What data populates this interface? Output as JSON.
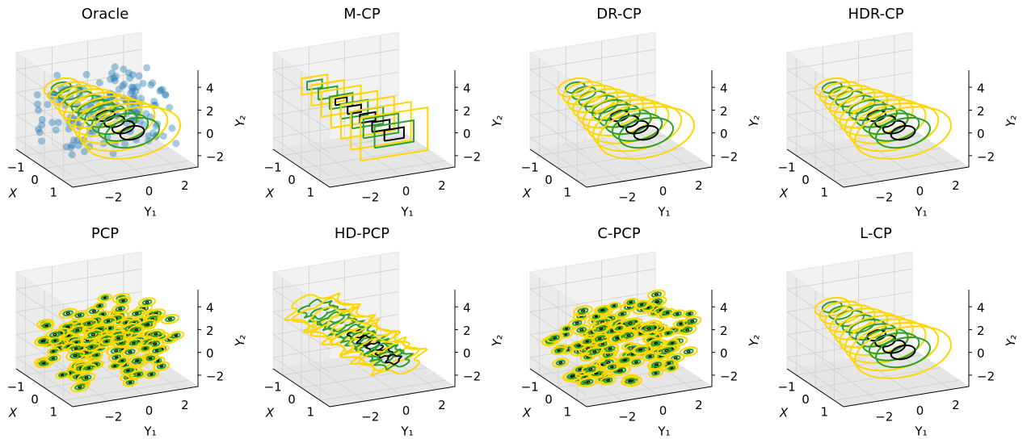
{
  "chart_data": [
    {
      "type": "contour",
      "title": "Oracle",
      "points": true,
      "colors": [
        "#ffd700",
        "#2ca02c",
        "#000000",
        "#1f77b4"
      ],
      "xlabel": "X",
      "ylabel": "Y₁",
      "zlabel": "Y₂",
      "xlim": [
        -1.5,
        1.5
      ],
      "ylim": [
        -4,
        3
      ],
      "zlim": [
        -3,
        5.5
      ],
      "xticks": [
        {
          "value": -1,
          "label": "−1"
        },
        0,
        1
      ],
      "yticks": [
        {
          "value": -2,
          "label": "−2"
        },
        0,
        2
      ],
      "zticks": [
        {
          "value": -2,
          "label": "−2"
        },
        0,
        2,
        4
      ]
    },
    {
      "type": "box",
      "title": "M-CP",
      "colors": [
        "#ffd700",
        "#2ca02c",
        "#000000"
      ],
      "xlabel": "X",
      "ylabel": "Y₁",
      "zlabel": "Y₂",
      "xlim": [
        -1.5,
        1.5
      ],
      "ylim": [
        -4,
        3
      ],
      "zlim": [
        -3,
        5.5
      ],
      "xticks": [
        {
          "value": -1,
          "label": "−1"
        },
        0,
        1
      ],
      "yticks": [
        {
          "value": -2,
          "label": "−2"
        },
        0,
        2
      ],
      "zticks": [
        {
          "value": -2,
          "label": "−2"
        },
        0,
        2,
        4
      ]
    },
    {
      "type": "contour",
      "title": "DR-CP",
      "colors": [
        "#ffd700",
        "#2ca02c",
        "#000000"
      ],
      "xlabel": "X",
      "ylabel": "Y₁",
      "zlabel": "Y₂",
      "xlim": [
        -1.5,
        1.5
      ],
      "ylim": [
        -4,
        3
      ],
      "zlim": [
        -3,
        5.5
      ],
      "xticks": [
        {
          "value": -1,
          "label": "−1"
        },
        0,
        1
      ],
      "yticks": [
        {
          "value": -2,
          "label": "−2"
        },
        0,
        2
      ],
      "zticks": [
        {
          "value": -2,
          "label": "−2"
        },
        0,
        2,
        4
      ]
    },
    {
      "type": "contour",
      "title": "HDR-CP",
      "colors": [
        "#ffd700",
        "#2ca02c",
        "#000000"
      ],
      "xlabel": "X",
      "ylabel": "Y₁",
      "zlabel": "Y₂",
      "xlim": [
        -1.5,
        1.5
      ],
      "ylim": [
        -4,
        3
      ],
      "zlim": [
        -3,
        5.5
      ],
      "xticks": [
        {
          "value": -1,
          "label": "−1"
        },
        0,
        1
      ],
      "yticks": [
        {
          "value": -2,
          "label": "−2"
        },
        0,
        2
      ],
      "zticks": [
        {
          "value": -2,
          "label": "−2"
        },
        0,
        2,
        4
      ]
    },
    {
      "type": "blob",
      "title": "PCP",
      "colors": [
        "#ffd700",
        "#2ca02c",
        "#000000"
      ],
      "xlabel": "X",
      "ylabel": "Y₁",
      "zlabel": "Y₂",
      "xlim": [
        -1.5,
        1.5
      ],
      "ylim": [
        -4,
        3
      ],
      "zlim": [
        -3,
        5.5
      ],
      "xticks": [
        {
          "value": -1,
          "label": "−1"
        },
        0,
        1
      ],
      "yticks": [
        {
          "value": -2,
          "label": "−2"
        },
        0,
        2
      ],
      "zticks": [
        {
          "value": -2,
          "label": "−2"
        },
        0,
        2,
        4
      ]
    },
    {
      "type": "wiggle",
      "title": "HD-PCP",
      "colors": [
        "#ffd700",
        "#2ca02c",
        "#000000"
      ],
      "xlabel": "X",
      "ylabel": "Y₁",
      "zlabel": "Y₂",
      "xlim": [
        -1.5,
        1.5
      ],
      "ylim": [
        -4,
        3
      ],
      "zlim": [
        -3,
        5.5
      ],
      "xticks": [
        {
          "value": -1,
          "label": "−1"
        },
        0,
        1
      ],
      "yticks": [
        {
          "value": -2,
          "label": "−2"
        },
        0,
        2
      ],
      "zticks": [
        {
          "value": -2,
          "label": "−2"
        },
        0,
        2,
        4
      ]
    },
    {
      "type": "blob",
      "title": "C-PCP",
      "colors": [
        "#ffd700",
        "#2ca02c",
        "#000000"
      ],
      "xlabel": "X",
      "ylabel": "Y₁",
      "zlabel": "Y₂",
      "xlim": [
        -1.5,
        1.5
      ],
      "ylim": [
        -4,
        3
      ],
      "zlim": [
        -3,
        5.5
      ],
      "xticks": [
        {
          "value": -1,
          "label": "−1"
        },
        0,
        1
      ],
      "yticks": [
        {
          "value": -2,
          "label": "−2"
        },
        0,
        2
      ],
      "zticks": [
        {
          "value": -2,
          "label": "−2"
        },
        0,
        2,
        4
      ]
    },
    {
      "type": "contour",
      "title": "L-CP",
      "colors": [
        "#ffd700",
        "#2ca02c",
        "#000000"
      ],
      "xlabel": "X",
      "ylabel": "Y₁",
      "zlabel": "Y₂",
      "xlim": [
        -1.5,
        1.5
      ],
      "ylim": [
        -4,
        3
      ],
      "zlim": [
        -3,
        5.5
      ],
      "xticks": [
        {
          "value": -1,
          "label": "−1"
        },
        0,
        1
      ],
      "yticks": [
        {
          "value": -2,
          "label": "−2"
        },
        0,
        2
      ],
      "zticks": [
        {
          "value": -2,
          "label": "−2"
        },
        0,
        2,
        4
      ]
    }
  ]
}
